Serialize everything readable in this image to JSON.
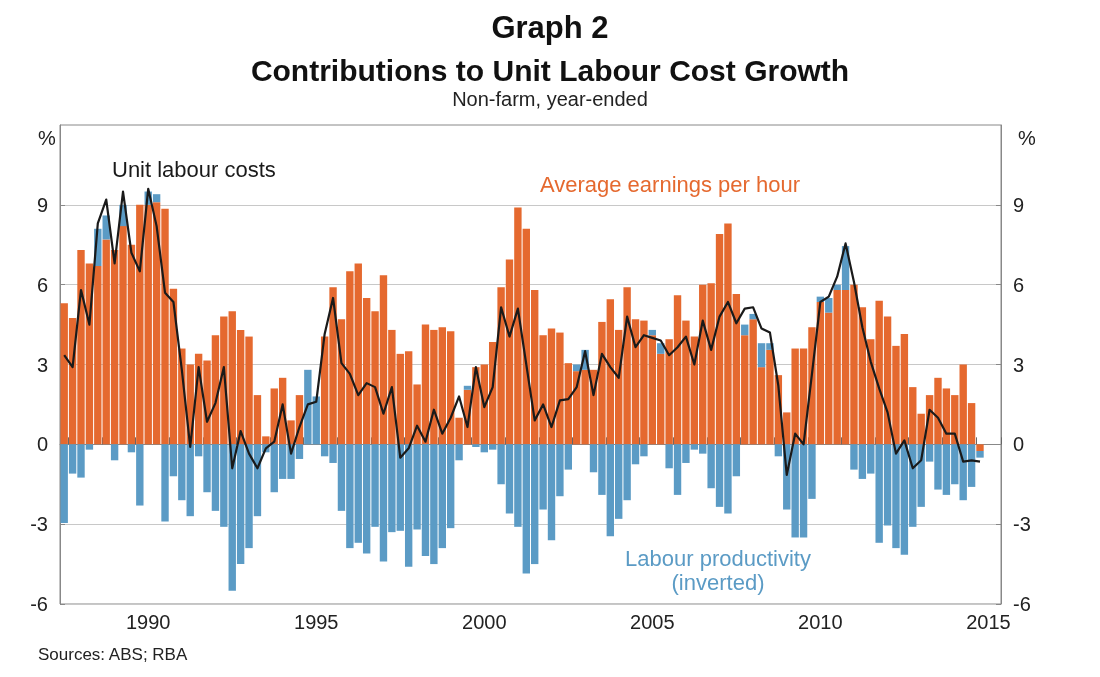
{
  "chart_data": {
    "type": "bar",
    "title": "Contributions to Unit Labour Cost Growth",
    "subtitle": "Non-farm, year-ended",
    "ylabel": "%",
    "y2label": "%",
    "annotations": [
      "Graph 2",
      "Sources: ABS; RBA"
    ],
    "categories": [
      null,
      null,
      null,
      null,
      null,
      null,
      null,
      null,
      null,
      null,
      "1990",
      null,
      null,
      null,
      null,
      null,
      null,
      null,
      null,
      null,
      null,
      null,
      null,
      null,
      null,
      null,
      null,
      null,
      null,
      null,
      "1995",
      null,
      null,
      null,
      null,
      null,
      null,
      null,
      null,
      null,
      null,
      null,
      null,
      null,
      null,
      null,
      null,
      null,
      null,
      null,
      "2000",
      null,
      null,
      null,
      null,
      null,
      null,
      null,
      null,
      null,
      null,
      null,
      null,
      null,
      null,
      null,
      null,
      null,
      null,
      null,
      "2005",
      null,
      null,
      null,
      null,
      null,
      null,
      null,
      null,
      null,
      null,
      null,
      null,
      null,
      null,
      null,
      null,
      null,
      null,
      null,
      "2010",
      null,
      null,
      null,
      null,
      null,
      null,
      null,
      null,
      null,
      null,
      null,
      null,
      null,
      null,
      null,
      null,
      null,
      null,
      null,
      "2015",
      null
    ],
    "stacked": true,
    "ylim": [
      -6,
      12
    ],
    "yticks": [
      -6,
      -3,
      0,
      3,
      6,
      9
    ],
    "y2lim": [
      -6,
      12
    ],
    "y2ticks": [
      -6,
      -3,
      0,
      3,
      6,
      9
    ],
    "grid": "y",
    "marker": "none",
    "line_style": "solid",
    "series": [
      {
        "name": "Average earnings per hour",
        "color": "#e5692f",
        "values": [
          5.3,
          4.75,
          7.3,
          6.8,
          6.7,
          7.7,
          7.3,
          8.2,
          7.5,
          9.0,
          9.0,
          9.1,
          8.85,
          5.85,
          3.6,
          3.0,
          3.4,
          3.15,
          4.1,
          4.8,
          5.0,
          4.3,
          4.05,
          1.85,
          0.3,
          2.1,
          2.5,
          0.9,
          1.85,
          0,
          0,
          4.05,
          5.9,
          4.7,
          6.5,
          6.8,
          5.5,
          5.0,
          6.35,
          4.3,
          3.4,
          3.5,
          2.25,
          4.5,
          4.3,
          4.4,
          4.25,
          1.0,
          2.05,
          2.9,
          3.0,
          3.85,
          5.9,
          6.95,
          8.9,
          8.1,
          5.8,
          4.1,
          4.35,
          4.2,
          3.05,
          2.75,
          2.8,
          2.8,
          4.6,
          5.45,
          4.3,
          5.9,
          4.7,
          4.65,
          4.1,
          3.4,
          3.95,
          5.6,
          4.65,
          4.05,
          6.0,
          6.05,
          7.9,
          8.3,
          5.65,
          4.1,
          4.7,
          2.9,
          3.55,
          2.6,
          1.2,
          3.6,
          3.6,
          4.4,
          5.35,
          4.95,
          5.8,
          5.8,
          6.0,
          5.15,
          3.95,
          5.4,
          4.8,
          3.7,
          4.15,
          2.15,
          1.15,
          1.85,
          2.5,
          2.1,
          1.85,
          3.0,
          1.55,
          -0.25,
          null,
          null
        ]
      },
      {
        "name": "Labour productivity (inverted)",
        "color": "#5b9bc5",
        "values": [
          -2.96,
          -1.1,
          -1.25,
          -0.2,
          1.4,
          0.9,
          -0.6,
          0.8,
          -0.3,
          -2.3,
          0.5,
          0.3,
          -2.9,
          -1.2,
          -2.1,
          -2.7,
          -0.45,
          -1.8,
          -2.5,
          -3.1,
          -5.5,
          -4.5,
          -3.9,
          -2.7,
          -0.3,
          -1.8,
          -1.3,
          -1.3,
          -0.55,
          2.8,
          1.8,
          -0.45,
          -0.7,
          -2.5,
          -3.9,
          -3.7,
          -4.1,
          -3.1,
          -4.4,
          -3.3,
          -3.25,
          -4.6,
          -3.2,
          -4.2,
          -4.5,
          -3.9,
          -3.15,
          -0.6,
          0.15,
          -0.1,
          -0.3,
          -0.2,
          -1.5,
          -2.6,
          -3.1,
          -4.85,
          -4.5,
          -2.45,
          -3.6,
          -1.95,
          -0.95,
          0.25,
          0.75,
          -1.05,
          -1.9,
          -3.45,
          -2.8,
          -2.1,
          -0.75,
          -0.45,
          0.2,
          0.4,
          -0.9,
          -1.9,
          -0.7,
          -0.2,
          -0.35,
          -1.65,
          -2.35,
          -2.6,
          -1.2,
          0.4,
          0.2,
          0.9,
          0.25,
          -0.45,
          -2.45,
          -3.5,
          -3.5,
          -2.05,
          0.2,
          0.55,
          0.2,
          1.65,
          -0.95,
          -1.3,
          -1.1,
          -3.7,
          -3.05,
          -3.9,
          -4.15,
          -3.1,
          -2.35,
          -0.65,
          -1.7,
          -1.9,
          -1.5,
          -2.1,
          -1.6,
          -0.25,
          null,
          null
        ]
      },
      {
        "name": "Unit labour costs",
        "type": "line",
        "color": "#1a1a1a",
        "values": [
          3.35,
          2.9,
          5.8,
          4.5,
          8.3,
          9.2,
          6.8,
          9.5,
          7.2,
          6.5,
          9.6,
          8.2,
          5.7,
          5.35,
          2.8,
          -0.1,
          2.9,
          0.85,
          1.55,
          2.9,
          -0.9,
          0.5,
          -0.35,
          -0.9,
          -0.15,
          0.1,
          1.5,
          -0.35,
          0.65,
          1.5,
          1.6,
          4.15,
          5.5,
          3.05,
          2.65,
          1.85,
          2.3,
          2.15,
          1.15,
          2.15,
          -0.5,
          -0.15,
          0.7,
          0.1,
          1.3,
          0.4,
          1.0,
          1.8,
          0.65,
          2.9,
          1.4,
          2.15,
          5.15,
          4.05,
          5.1,
          3.0,
          0.9,
          1.5,
          0.65,
          1.65,
          1.7,
          2.15,
          3.5,
          1.85,
          3.4,
          2.9,
          2.5,
          4.8,
          3.65,
          4.1,
          4.0,
          3.9,
          3.35,
          3.65,
          4.05,
          3.0,
          4.65,
          3.55,
          4.8,
          5.35,
          4.55,
          5.1,
          5.15,
          4.35,
          4.2,
          2.2,
          -1.15,
          0.4,
          0.0,
          2.65,
          5.35,
          5.55,
          6.3,
          7.55,
          6.1,
          4.4,
          3.1,
          2.1,
          1.2,
          -0.35,
          0.15,
          -0.9,
          -0.6,
          1.3,
          1.0,
          0.4,
          0.4,
          -0.65,
          -0.6,
          -0.65,
          null,
          null
        ]
      }
    ]
  }
}
